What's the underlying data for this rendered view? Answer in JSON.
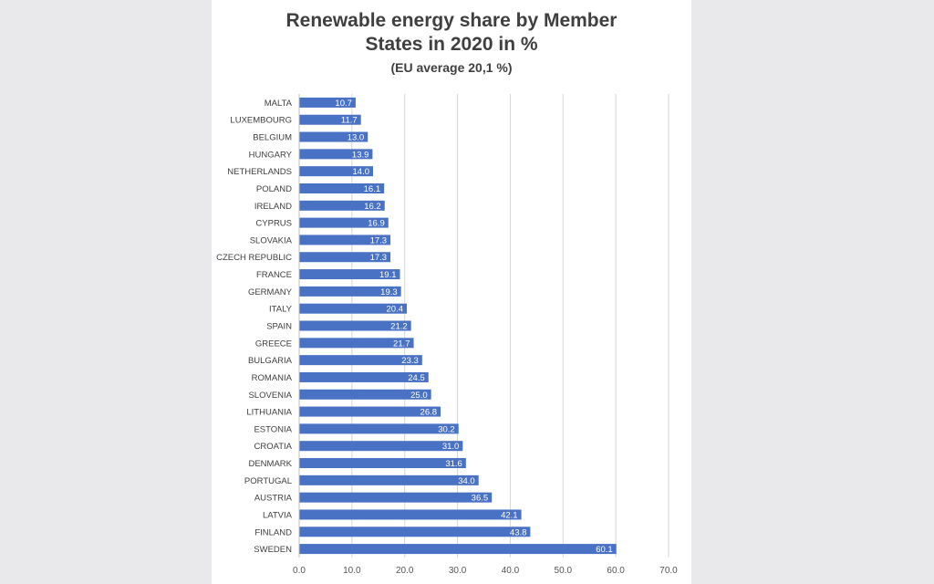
{
  "chart_data": {
    "type": "bar",
    "orientation": "horizontal",
    "title_lines": [
      "Renewable energy share by Member",
      "States in 2020 in %"
    ],
    "subtitle": "(EU average 20,1 %)",
    "categories": [
      "MALTA",
      "LUXEMBOURG",
      "BELGIUM",
      "HUNGARY",
      "NETHERLANDS",
      "POLAND",
      "IRELAND",
      "CYPRUS",
      "SLOVAKIA",
      "CZECH REPUBLIC",
      "FRANCE",
      "GERMANY",
      "ITALY",
      "SPAIN",
      "GREECE",
      "BULGARIA",
      "ROMANIA",
      "SLOVENIA",
      "LITHUANIA",
      "ESTONIA",
      "CROATIA",
      "DENMARK",
      "PORTUGAL",
      "AUSTRIA",
      "LATVIA",
      "FINLAND",
      "SWEDEN"
    ],
    "values": [
      10.7,
      11.7,
      13.0,
      13.9,
      14.0,
      16.1,
      16.2,
      16.9,
      17.3,
      17.3,
      19.1,
      19.3,
      20.4,
      21.2,
      21.7,
      23.3,
      24.5,
      25.0,
      26.8,
      30.2,
      31.0,
      31.6,
      34.0,
      36.5,
      42.1,
      43.8,
      60.1
    ],
    "xlim": [
      0,
      70
    ],
    "xticks": [
      "0.0",
      "10.0",
      "20.0",
      "30.0",
      "40.0",
      "50.0",
      "60.0",
      "70.0"
    ],
    "grid": "vertical",
    "data_labels": true,
    "bar_color": "#4a72c4"
  }
}
